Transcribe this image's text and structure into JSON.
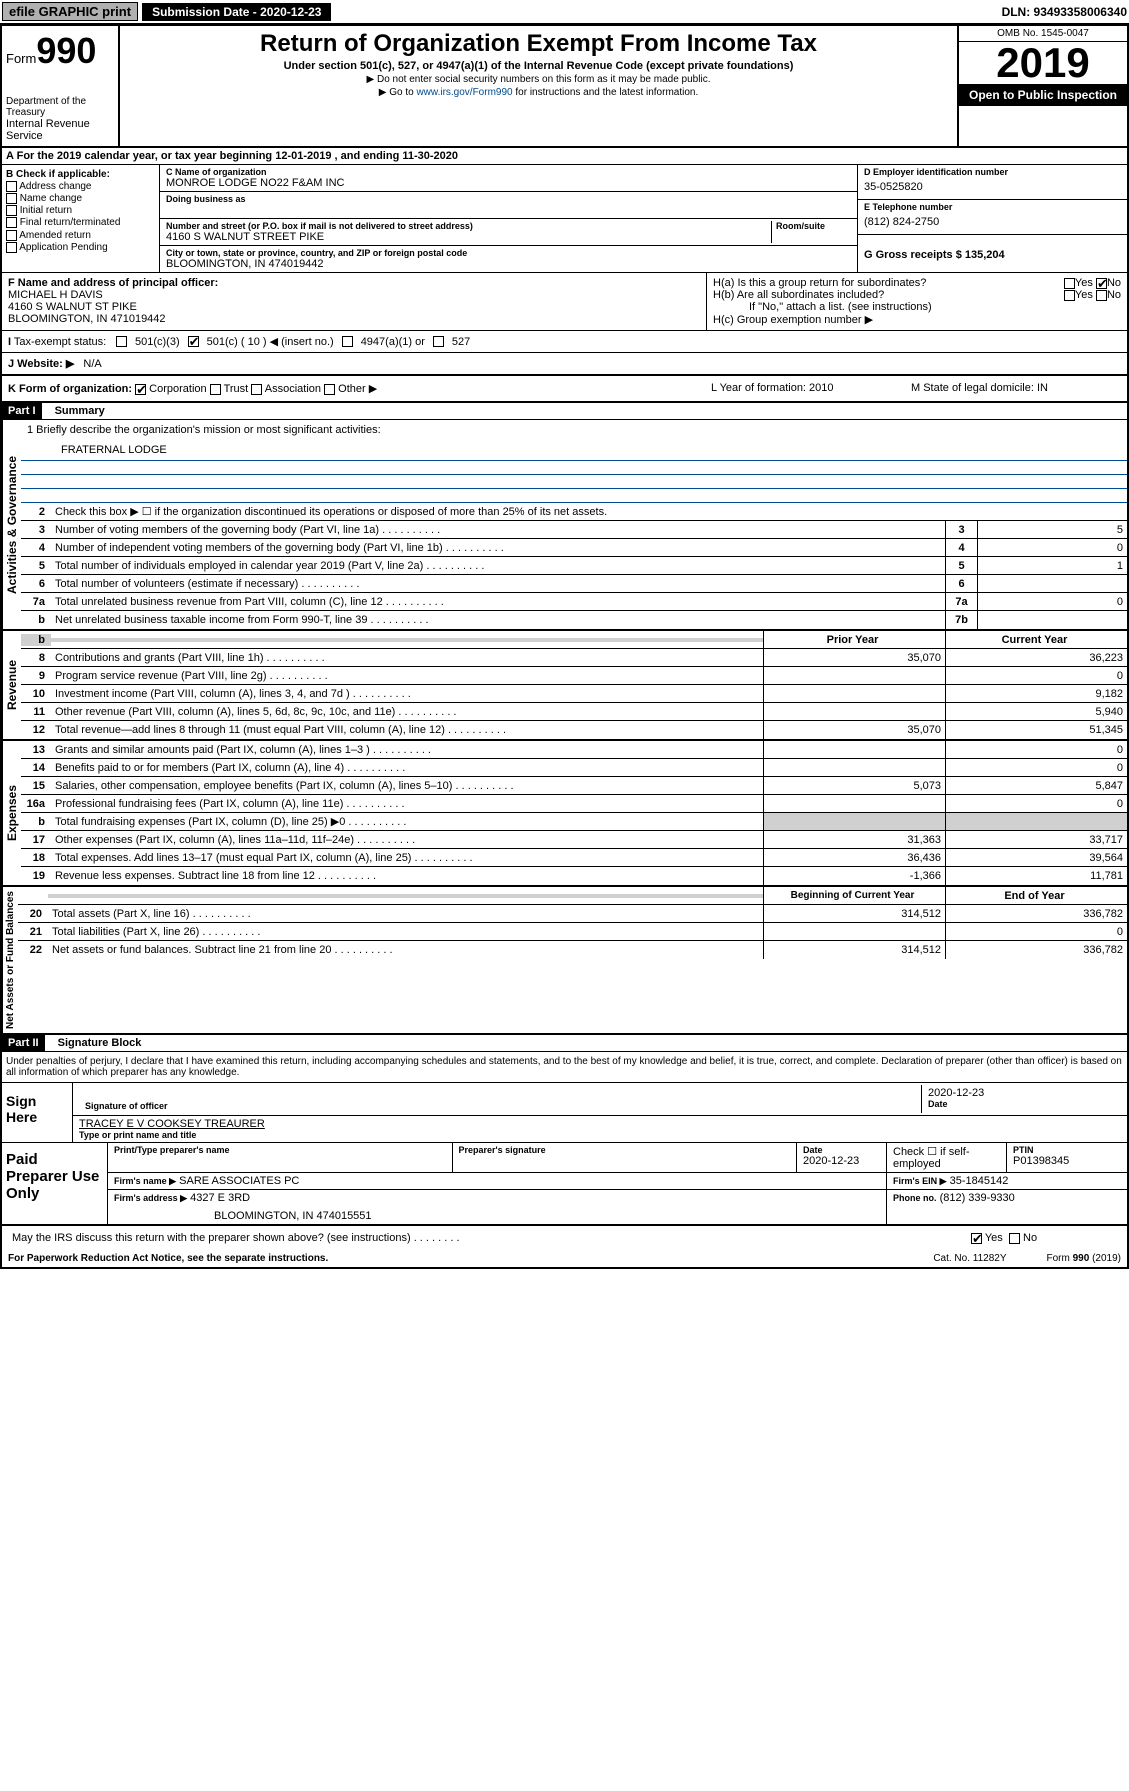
{
  "header": {
    "efile": "efile GRAPHIC print",
    "submission_label": "Submission Date - 2020-12-23",
    "dln": "DLN: 93493358006340"
  },
  "form_id": {
    "prefix": "Form",
    "number": "990",
    "dept1": "Department of the Treasury",
    "dept2": "Internal Revenue Service"
  },
  "title": {
    "main": "Return of Organization Exempt From Income Tax",
    "sub": "Under section 501(c), 527, or 4947(a)(1) of the Internal Revenue Code (except private foundations)",
    "note1": "▶ Do not enter social security numbers on this form as it may be made public.",
    "note2_pre": "▶ Go to ",
    "note2_link": "www.irs.gov/Form990",
    "note2_post": " for instructions and the latest information."
  },
  "year_block": {
    "omb": "OMB No. 1545-0047",
    "year": "2019",
    "open": "Open to Public Inspection"
  },
  "period": "For the 2019 calendar year, or tax year beginning 12-01-2019    , and ending 11-30-2020",
  "checkboxes": {
    "header": "B Check if applicable:",
    "items": [
      "Address change",
      "Name change",
      "Initial return",
      "Final return/terminated",
      "Amended return",
      "Application Pending"
    ]
  },
  "org": {
    "name_label": "C Name of organization",
    "name": "MONROE LODGE NO22 F&AM INC",
    "dba_label": "Doing business as",
    "addr_label": "Number and street (or P.O. box if mail is not delivered to street address)",
    "room_label": "Room/suite",
    "addr": "4160 S WALNUT STREET PIKE",
    "city_label": "City or town, state or province, country, and ZIP or foreign postal code",
    "city": "BLOOMINGTON, IN  474019442"
  },
  "right": {
    "ein_label": "D Employer identification number",
    "ein": "35-0525820",
    "phone_label": "E Telephone number",
    "phone": "(812) 824-2750",
    "gross_label": "G Gross receipts $ 135,204"
  },
  "officer": {
    "label": "F  Name and address of principal officer:",
    "name": "MICHAEL H DAVIS",
    "addr1": "4160 S WALNUT ST PIKE",
    "addr2": "BLOOMINGTON, IN  471019442"
  },
  "h": {
    "a": "H(a)  Is this a group return for subordinates?",
    "b": "H(b)  Are all subordinates included?",
    "b_note": "If \"No,\" attach a list. (see instructions)",
    "c": "H(c)  Group exemption number ▶",
    "yes": "Yes",
    "no": "No"
  },
  "tax_exempt": {
    "label": "Tax-exempt status:",
    "opt1": "501(c)(3)",
    "opt2": "501(c) ( 10 ) ◀ (insert no.)",
    "opt3": "4947(a)(1) or",
    "opt4": "527"
  },
  "website": {
    "label": "J   Website: ▶",
    "value": "N/A"
  },
  "k": {
    "label": "K Form of organization:",
    "corp": "Corporation",
    "trust": "Trust",
    "assoc": "Association",
    "other": "Other ▶",
    "year_label": "L Year of formation: 2010",
    "state_label": "M State of legal domicile: IN"
  },
  "part1": {
    "header": "Part I",
    "title": "Summary",
    "line1_label": "1  Briefly describe the organization's mission or most significant activities:",
    "line1_value": "FRATERNAL LODGE",
    "line2": "Check this box ▶ ☐  if the organization discontinued its operations or disposed of more than 25% of its net assets.",
    "lines_gov": [
      {
        "n": "3",
        "t": "Number of voting members of the governing body (Part VI, line 1a)",
        "c": "3",
        "v": "5"
      },
      {
        "n": "4",
        "t": "Number of independent voting members of the governing body (Part VI, line 1b)",
        "c": "4",
        "v": "0"
      },
      {
        "n": "5",
        "t": "Total number of individuals employed in calendar year 2019 (Part V, line 2a)",
        "c": "5",
        "v": "1"
      },
      {
        "n": "6",
        "t": "Total number of volunteers (estimate if necessary)",
        "c": "6",
        "v": ""
      },
      {
        "n": "7a",
        "t": "Total unrelated business revenue from Part VIII, column (C), line 12",
        "c": "7a",
        "v": "0"
      },
      {
        "n": "b",
        "t": "Net unrelated business taxable income from Form 990-T, line 39",
        "c": "7b",
        "v": ""
      }
    ],
    "prior_year": "Prior Year",
    "current_year": "Current Year",
    "revenue": [
      {
        "n": "8",
        "t": "Contributions and grants (Part VIII, line 1h)",
        "p": "35,070",
        "c": "36,223"
      },
      {
        "n": "9",
        "t": "Program service revenue (Part VIII, line 2g)",
        "p": "",
        "c": "0"
      },
      {
        "n": "10",
        "t": "Investment income (Part VIII, column (A), lines 3, 4, and 7d )",
        "p": "",
        "c": "9,182"
      },
      {
        "n": "11",
        "t": "Other revenue (Part VIII, column (A), lines 5, 6d, 8c, 9c, 10c, and 11e)",
        "p": "",
        "c": "5,940"
      },
      {
        "n": "12",
        "t": "Total revenue—add lines 8 through 11 (must equal Part VIII, column (A), line 12)",
        "p": "35,070",
        "c": "51,345"
      }
    ],
    "expenses": [
      {
        "n": "13",
        "t": "Grants and similar amounts paid (Part IX, column (A), lines 1–3 )",
        "p": "",
        "c": "0"
      },
      {
        "n": "14",
        "t": "Benefits paid to or for members (Part IX, column (A), line 4)",
        "p": "",
        "c": "0"
      },
      {
        "n": "15",
        "t": "Salaries, other compensation, employee benefits (Part IX, column (A), lines 5–10)",
        "p": "5,073",
        "c": "5,847"
      },
      {
        "n": "16a",
        "t": "Professional fundraising fees (Part IX, column (A), line 11e)",
        "p": "",
        "c": "0"
      },
      {
        "n": "b",
        "t": "Total fundraising expenses (Part IX, column (D), line 25) ▶0",
        "p": "gray",
        "c": "gray"
      },
      {
        "n": "17",
        "t": "Other expenses (Part IX, column (A), lines 11a–11d, 11f–24e)",
        "p": "31,363",
        "c": "33,717"
      },
      {
        "n": "18",
        "t": "Total expenses. Add lines 13–17 (must equal Part IX, column (A), line 25)",
        "p": "36,436",
        "c": "39,564"
      },
      {
        "n": "19",
        "t": "Revenue less expenses. Subtract line 18 from line 12",
        "p": "-1,366",
        "c": "11,781"
      }
    ],
    "begin_year": "Beginning of Current Year",
    "end_year": "End of Year",
    "netassets": [
      {
        "n": "20",
        "t": "Total assets (Part X, line 16)",
        "p": "314,512",
        "c": "336,782"
      },
      {
        "n": "21",
        "t": "Total liabilities (Part X, line 26)",
        "p": "",
        "c": "0"
      },
      {
        "n": "22",
        "t": "Net assets or fund balances. Subtract line 21 from line 20",
        "p": "314,512",
        "c": "336,782"
      }
    ],
    "vert_gov": "Activities & Governance",
    "vert_rev": "Revenue",
    "vert_exp": "Expenses",
    "vert_net": "Net Assets or Fund Balances"
  },
  "part2": {
    "header": "Part II",
    "title": "Signature Block",
    "perjury": "Under penalties of perjury, I declare that I have examined this return, including accompanying schedules and statements, and to the best of my knowledge and belief, it is true, correct, and complete. Declaration of preparer (other than officer) is based on all information of which preparer has any knowledge.",
    "sign_here": "Sign Here",
    "sig_officer": "Signature of officer",
    "date": "2020-12-23",
    "date_label": "Date",
    "typed_name": "TRACEY E V COOKSEY  TREAURER",
    "typed_label": "Type or print name and title",
    "paid": "Paid Preparer Use Only",
    "prep_name_label": "Print/Type preparer's name",
    "prep_sig_label": "Preparer's signature",
    "prep_date_label": "Date",
    "prep_date": "2020-12-23",
    "check_self": "Check ☐ if self-employed",
    "ptin_label": "PTIN",
    "ptin": "P01398345",
    "firm_name_label": "Firm's name    ▶",
    "firm_name": "SARE ASSOCIATES PC",
    "firm_ein_label": "Firm's EIN ▶",
    "firm_ein": "35-1845142",
    "firm_addr_label": "Firm's address ▶",
    "firm_addr": "4327 E 3RD",
    "firm_city": "BLOOMINGTON, IN  474015551",
    "firm_phone_label": "Phone no.",
    "firm_phone": "(812) 339-9330",
    "discuss": "May the IRS discuss this return with the preparer shown above? (see instructions)"
  },
  "footer": {
    "left": "For Paperwork Reduction Act Notice, see the separate instructions.",
    "mid": "Cat. No. 11282Y",
    "right": "Form 990 (2019)"
  }
}
